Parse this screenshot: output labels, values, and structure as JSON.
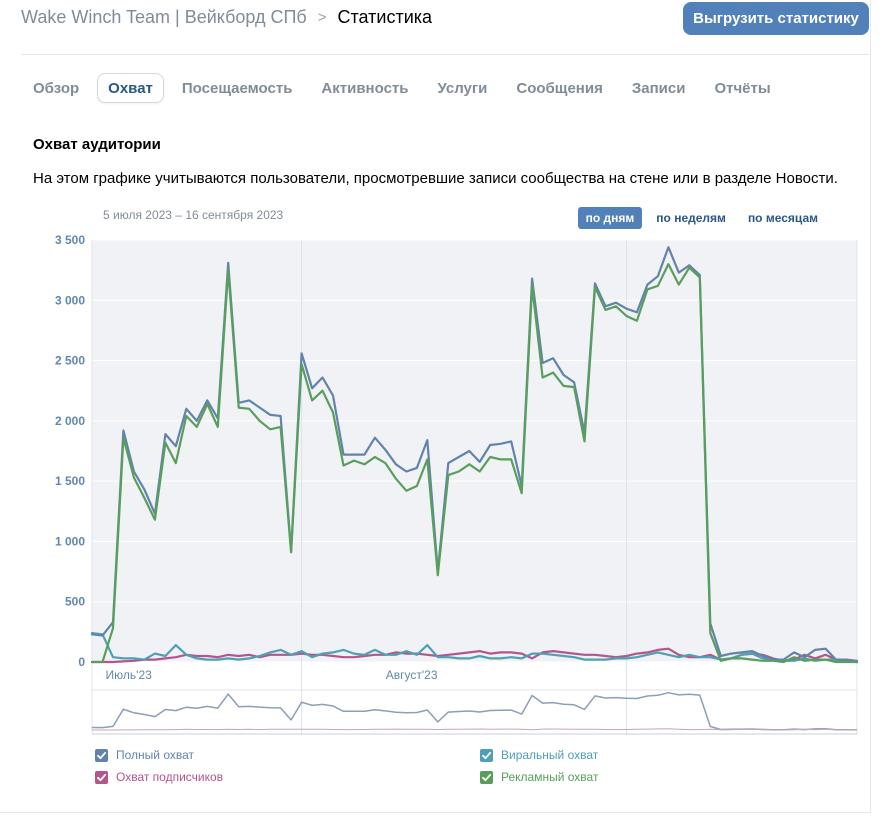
{
  "header": {
    "breadcrumb_root": "Wake Winch Team | Вейкборд СПб",
    "breadcrumb_separator": ">",
    "breadcrumb_current": "Статистика",
    "export_button": "Выгрузить статистику"
  },
  "tabs": [
    {
      "label": "Обзор",
      "active": false
    },
    {
      "label": "Охват",
      "active": true
    },
    {
      "label": "Посещаемость",
      "active": false
    },
    {
      "label": "Активность",
      "active": false
    },
    {
      "label": "Услуги",
      "active": false
    },
    {
      "label": "Сообщения",
      "active": false
    },
    {
      "label": "Записи",
      "active": false
    },
    {
      "label": "Отчёты",
      "active": false
    }
  ],
  "section": {
    "title": "Охват аудитории",
    "description": "На этом графике учитываются пользователи, просмотревшие записи сообщества на стене или в разделе Новости."
  },
  "chart_controls": {
    "date_range": "5 июля 2023 – 16 сентября 2023",
    "periods": [
      {
        "label": "по дням",
        "active": true
      },
      {
        "label": "по неделям",
        "active": false
      },
      {
        "label": "по месяцам",
        "active": false
      }
    ]
  },
  "chart_data": {
    "type": "line",
    "title": "",
    "x_start_label": "5 июля 2023",
    "x_end_label": "16 сентября 2023",
    "x_tick_labels": [
      "Июль'23",
      "Август'23"
    ],
    "x_tick_positions": [
      3.5,
      30.5
    ],
    "x_gridlines": [
      20,
      51
    ],
    "ylim": [
      0,
      3500
    ],
    "y_ticks": [
      0,
      500,
      1000,
      1500,
      2000,
      2500,
      3000,
      3500
    ],
    "y_tick_labels": [
      "0",
      "500",
      "1 000",
      "1 500",
      "2 000",
      "2 500",
      "3 000",
      "3 500"
    ],
    "grid": true,
    "legend_position": "bottom",
    "x": [
      0,
      1,
      2,
      3,
      4,
      5,
      6,
      7,
      8,
      9,
      10,
      11,
      12,
      13,
      14,
      15,
      16,
      17,
      18,
      19,
      20,
      21,
      22,
      23,
      24,
      25,
      26,
      27,
      28,
      29,
      30,
      31,
      32,
      33,
      34,
      35,
      36,
      37,
      38,
      39,
      40,
      41,
      42,
      43,
      44,
      45,
      46,
      47,
      48,
      49,
      50,
      51,
      52,
      53,
      54,
      55,
      56,
      57,
      58,
      59,
      60,
      61,
      62,
      63,
      64,
      65,
      66,
      67,
      68,
      69,
      70,
      71,
      72,
      73
    ],
    "series": [
      {
        "name": "Полный охват",
        "color": "#6283ab",
        "values": [
          230,
          220,
          330,
          1920,
          1580,
          1430,
          1230,
          1890,
          1790,
          2100,
          2000,
          2170,
          2020,
          3310,
          2150,
          2170,
          2110,
          2050,
          2040,
          920,
          2560,
          2270,
          2360,
          2210,
          1720,
          1720,
          1720,
          1860,
          1760,
          1640,
          1580,
          1610,
          1840,
          750,
          1650,
          1700,
          1750,
          1660,
          1800,
          1810,
          1830,
          1460,
          3180,
          2480,
          2520,
          2380,
          2320,
          1900,
          3140,
          2950,
          2980,
          2930,
          2900,
          3130,
          3200,
          3440,
          3230,
          3290,
          3210,
          320,
          50,
          70,
          80,
          90,
          50,
          20,
          20,
          80,
          40,
          100,
          110,
          20,
          20,
          10
        ]
      },
      {
        "name": "Охват подписчиков",
        "color": "#b4558b",
        "values": [
          0,
          0,
          0,
          5,
          10,
          20,
          20,
          30,
          40,
          60,
          50,
          50,
          40,
          60,
          50,
          60,
          40,
          60,
          60,
          60,
          70,
          60,
          60,
          50,
          40,
          40,
          50,
          60,
          60,
          80,
          70,
          70,
          60,
          50,
          60,
          70,
          80,
          90,
          70,
          80,
          80,
          70,
          30,
          80,
          90,
          80,
          70,
          60,
          60,
          50,
          40,
          50,
          70,
          80,
          100,
          110,
          60,
          40,
          40,
          60,
          20,
          30,
          60,
          70,
          60,
          30,
          10,
          20,
          60,
          30,
          60,
          20,
          10,
          0
        ]
      },
      {
        "name": "Виральный охват",
        "color": "#4da0b6",
        "values": [
          240,
          230,
          40,
          30,
          30,
          20,
          70,
          50,
          140,
          60,
          30,
          20,
          20,
          30,
          20,
          30,
          50,
          80,
          100,
          60,
          90,
          40,
          70,
          80,
          100,
          70,
          60,
          100,
          60,
          60,
          90,
          60,
          140,
          40,
          40,
          30,
          30,
          50,
          30,
          30,
          40,
          30,
          70,
          70,
          60,
          50,
          40,
          20,
          20,
          20,
          30,
          30,
          40,
          60,
          80,
          60,
          40,
          60,
          40,
          40,
          20,
          30,
          60,
          70,
          30,
          20,
          10,
          10,
          30,
          10,
          20,
          20,
          10,
          0
        ]
      },
      {
        "name": "Рекламный охват",
        "color": "#5a9e5c",
        "values": [
          0,
          0,
          280,
          1860,
          1530,
          1360,
          1180,
          1820,
          1650,
          2040,
          1950,
          2140,
          1950,
          3250,
          2110,
          2100,
          2000,
          1930,
          1950,
          910,
          2470,
          2170,
          2250,
          2070,
          1630,
          1670,
          1640,
          1700,
          1650,
          1520,
          1420,
          1460,
          1680,
          720,
          1550,
          1580,
          1640,
          1580,
          1700,
          1680,
          1680,
          1400,
          3120,
          2360,
          2400,
          2290,
          2280,
          1830,
          3110,
          2920,
          2950,
          2870,
          2830,
          3090,
          3120,
          3300,
          3130,
          3270,
          3190,
          240,
          10,
          30,
          30,
          20,
          10,
          10,
          0,
          40,
          10,
          20,
          20,
          0,
          0,
          0
        ]
      }
    ]
  },
  "legend": [
    {
      "label": "Полный охват",
      "color": "#6283ab",
      "checked": true
    },
    {
      "label": "Виральный охват",
      "color": "#4da0b6",
      "checked": true
    },
    {
      "label": "Охват подписчиков",
      "color": "#b4558b",
      "checked": true
    },
    {
      "label": "Рекламный охват",
      "color": "#5a9e5c",
      "checked": true
    }
  ]
}
